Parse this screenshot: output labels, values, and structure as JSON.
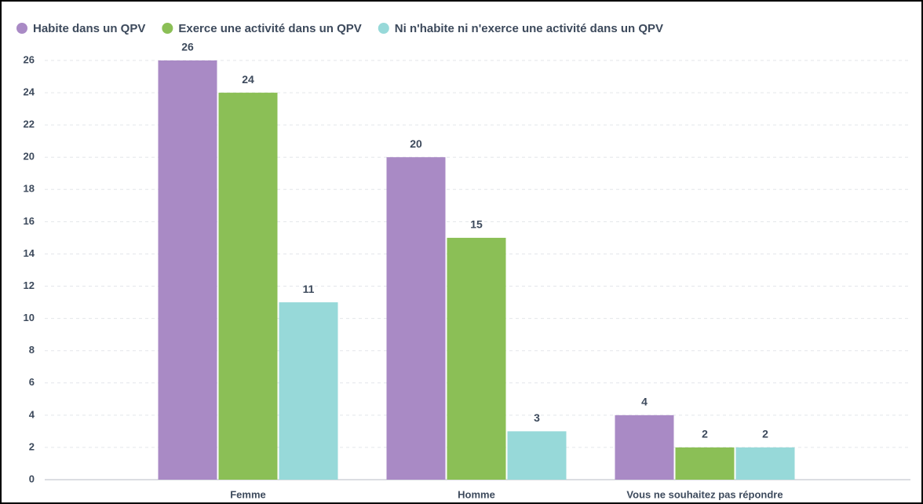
{
  "chart_data": {
    "type": "bar",
    "categories": [
      "Femme",
      "Homme",
      "Vous ne souhaitez pas répondre"
    ],
    "series": [
      {
        "name": "Habite dans un QPV",
        "color": "#a98ac5",
        "values": [
          26,
          20,
          4
        ]
      },
      {
        "name": "Exerce une activité dans un QPV",
        "color": "#8bbf56",
        "values": [
          24,
          15,
          2
        ]
      },
      {
        "name": "Ni n'habite ni n'exerce une activité dans un QPV",
        "color": "#97d9d9",
        "values": [
          11,
          3,
          2
        ]
      }
    ],
    "ylim": [
      0,
      26
    ],
    "yticks": [
      0,
      2,
      4,
      6,
      8,
      10,
      12,
      14,
      16,
      18,
      20,
      22,
      24,
      26
    ],
    "grid": true,
    "legend": "top"
  }
}
